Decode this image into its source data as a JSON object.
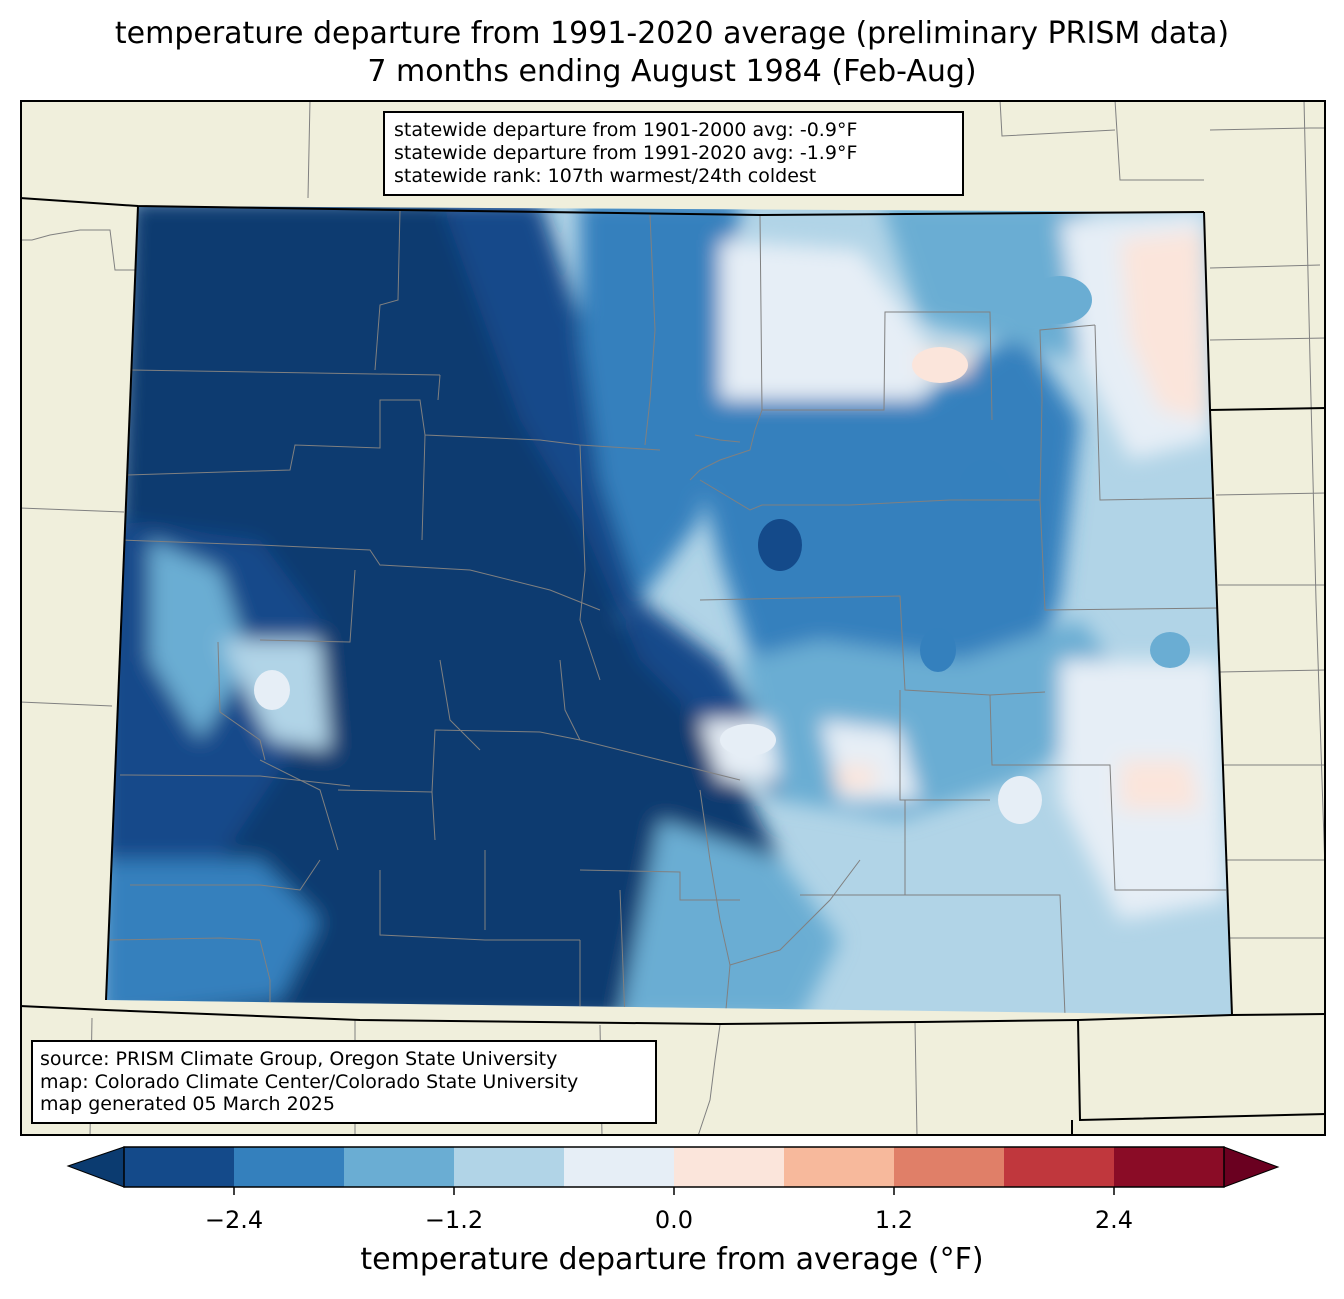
{
  "title": {
    "line1": "temperature departure from 1991-2020 average (preliminary PRISM data)",
    "line2": "7 months ending August 1984 (Feb-Aug)"
  },
  "stats": {
    "line1": "statewide departure from 1901-2000 avg: -0.9°F",
    "line2": "statewide departure from 1991-2020 avg: -1.9°F",
    "line3": "statewide rank: 107th warmest/24th coldest"
  },
  "source": {
    "line1": "source: PRISM Climate Group, Oregon State University",
    "line2": "map: Colorado Climate Center/Colorado State University",
    "line3": "map generated 05 March 2025"
  },
  "colorbar": {
    "label": "temperature departure from average (°F)",
    "ticks": [
      "−2.4",
      "−1.2",
      "0.0",
      "1.2",
      "2.4"
    ],
    "colors": [
      "#0b3b70",
      "#144a8a",
      "#3480bd",
      "#6aadd3",
      "#b1d4e7",
      "#e6eef6",
      "#fbe5db",
      "#f7b99c",
      "#e07f68",
      "#c0373d",
      "#8a0c26",
      "#6a0020"
    ]
  },
  "map_colors": {
    "background": "#f0efdc",
    "county_lines": "#808080",
    "state_lines": "#000000"
  }
}
